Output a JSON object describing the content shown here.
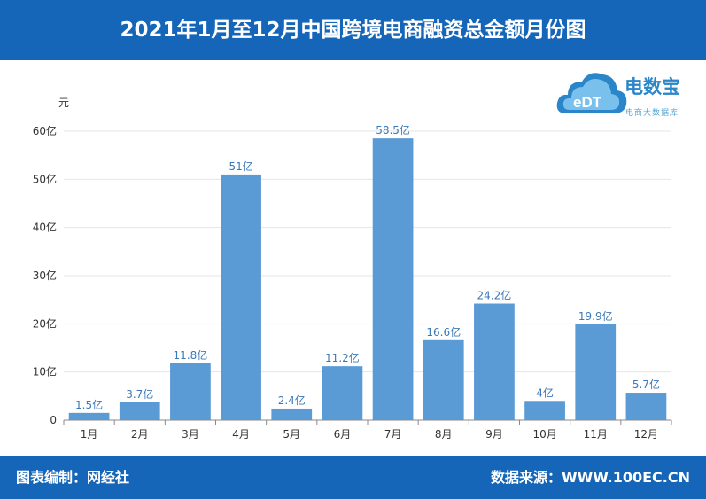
{
  "header": {
    "title": "2021年1月至12月中国跨境电商融资总金额月份图"
  },
  "footer": {
    "left": "图表编制：网经社",
    "right": "数据来源：WWW.100EC.CN"
  },
  "logo": {
    "name": "电数宝",
    "badge": "eDT",
    "sub": "电商大数据库"
  },
  "colors": {
    "brand": "#1565b8",
    "bar": "#5b9bd5",
    "label": "#3a78b8"
  },
  "chart_data": {
    "type": "bar",
    "title": "2021年1月至12月中国跨境电商融资总金额月份图",
    "ylabel": "元",
    "ylim": [
      0,
      60
    ],
    "yticks": [
      "0",
      "10亿",
      "20亿",
      "30亿",
      "40亿",
      "50亿",
      "60亿"
    ],
    "categories": [
      "1月",
      "2月",
      "3月",
      "4月",
      "5月",
      "6月",
      "7月",
      "8月",
      "9月",
      "10月",
      "11月",
      "12月"
    ],
    "values": [
      1.5,
      3.7,
      11.8,
      51,
      2.4,
      11.2,
      58.5,
      16.6,
      24.2,
      4,
      19.9,
      5.7
    ],
    "labels": [
      "1.5亿",
      "3.7亿",
      "11.8亿",
      "51亿",
      "2.4亿",
      "11.2亿",
      "58.5亿",
      "16.6亿",
      "24.2亿",
      "4亿",
      "19.9亿",
      "5.7亿"
    ],
    "grid": true,
    "legend": "none"
  }
}
